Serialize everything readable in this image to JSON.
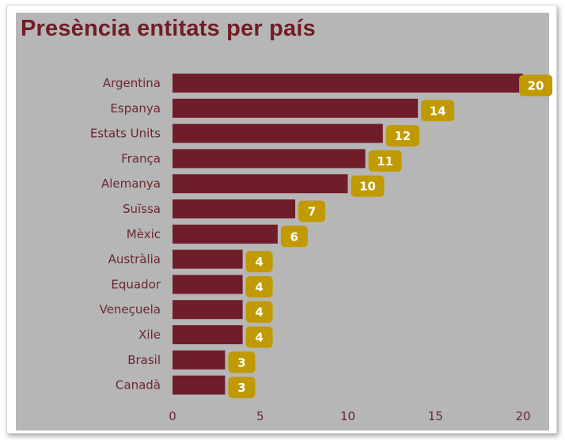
{
  "title": "Presència entitats per país",
  "colors": {
    "bar": "#701d2a",
    "badge": "#c09a00",
    "badge_text": "#ffffff",
    "background": "#b6b6b6",
    "title": "#701d26"
  },
  "chart_data": {
    "type": "bar",
    "orientation": "horizontal",
    "title": "Presència entitats per país",
    "xlabel": "",
    "ylabel": "",
    "categories": [
      "Argentina",
      "Espanya",
      "Estats Units",
      "França",
      "Alemanya",
      "Suïssa",
      "Mèxic",
      "Austràlia",
      "Equador",
      "Veneçuela",
      "Xile",
      "Brasil",
      "Canadà"
    ],
    "values": [
      20,
      14,
      12,
      11,
      10,
      7,
      6,
      4,
      4,
      4,
      4,
      3,
      3
    ],
    "xlim": [
      0,
      20
    ],
    "xticks": [
      "0",
      "5",
      "10",
      "15",
      "20"
    ],
    "data_labels": true,
    "grid": false,
    "legend": "none"
  }
}
